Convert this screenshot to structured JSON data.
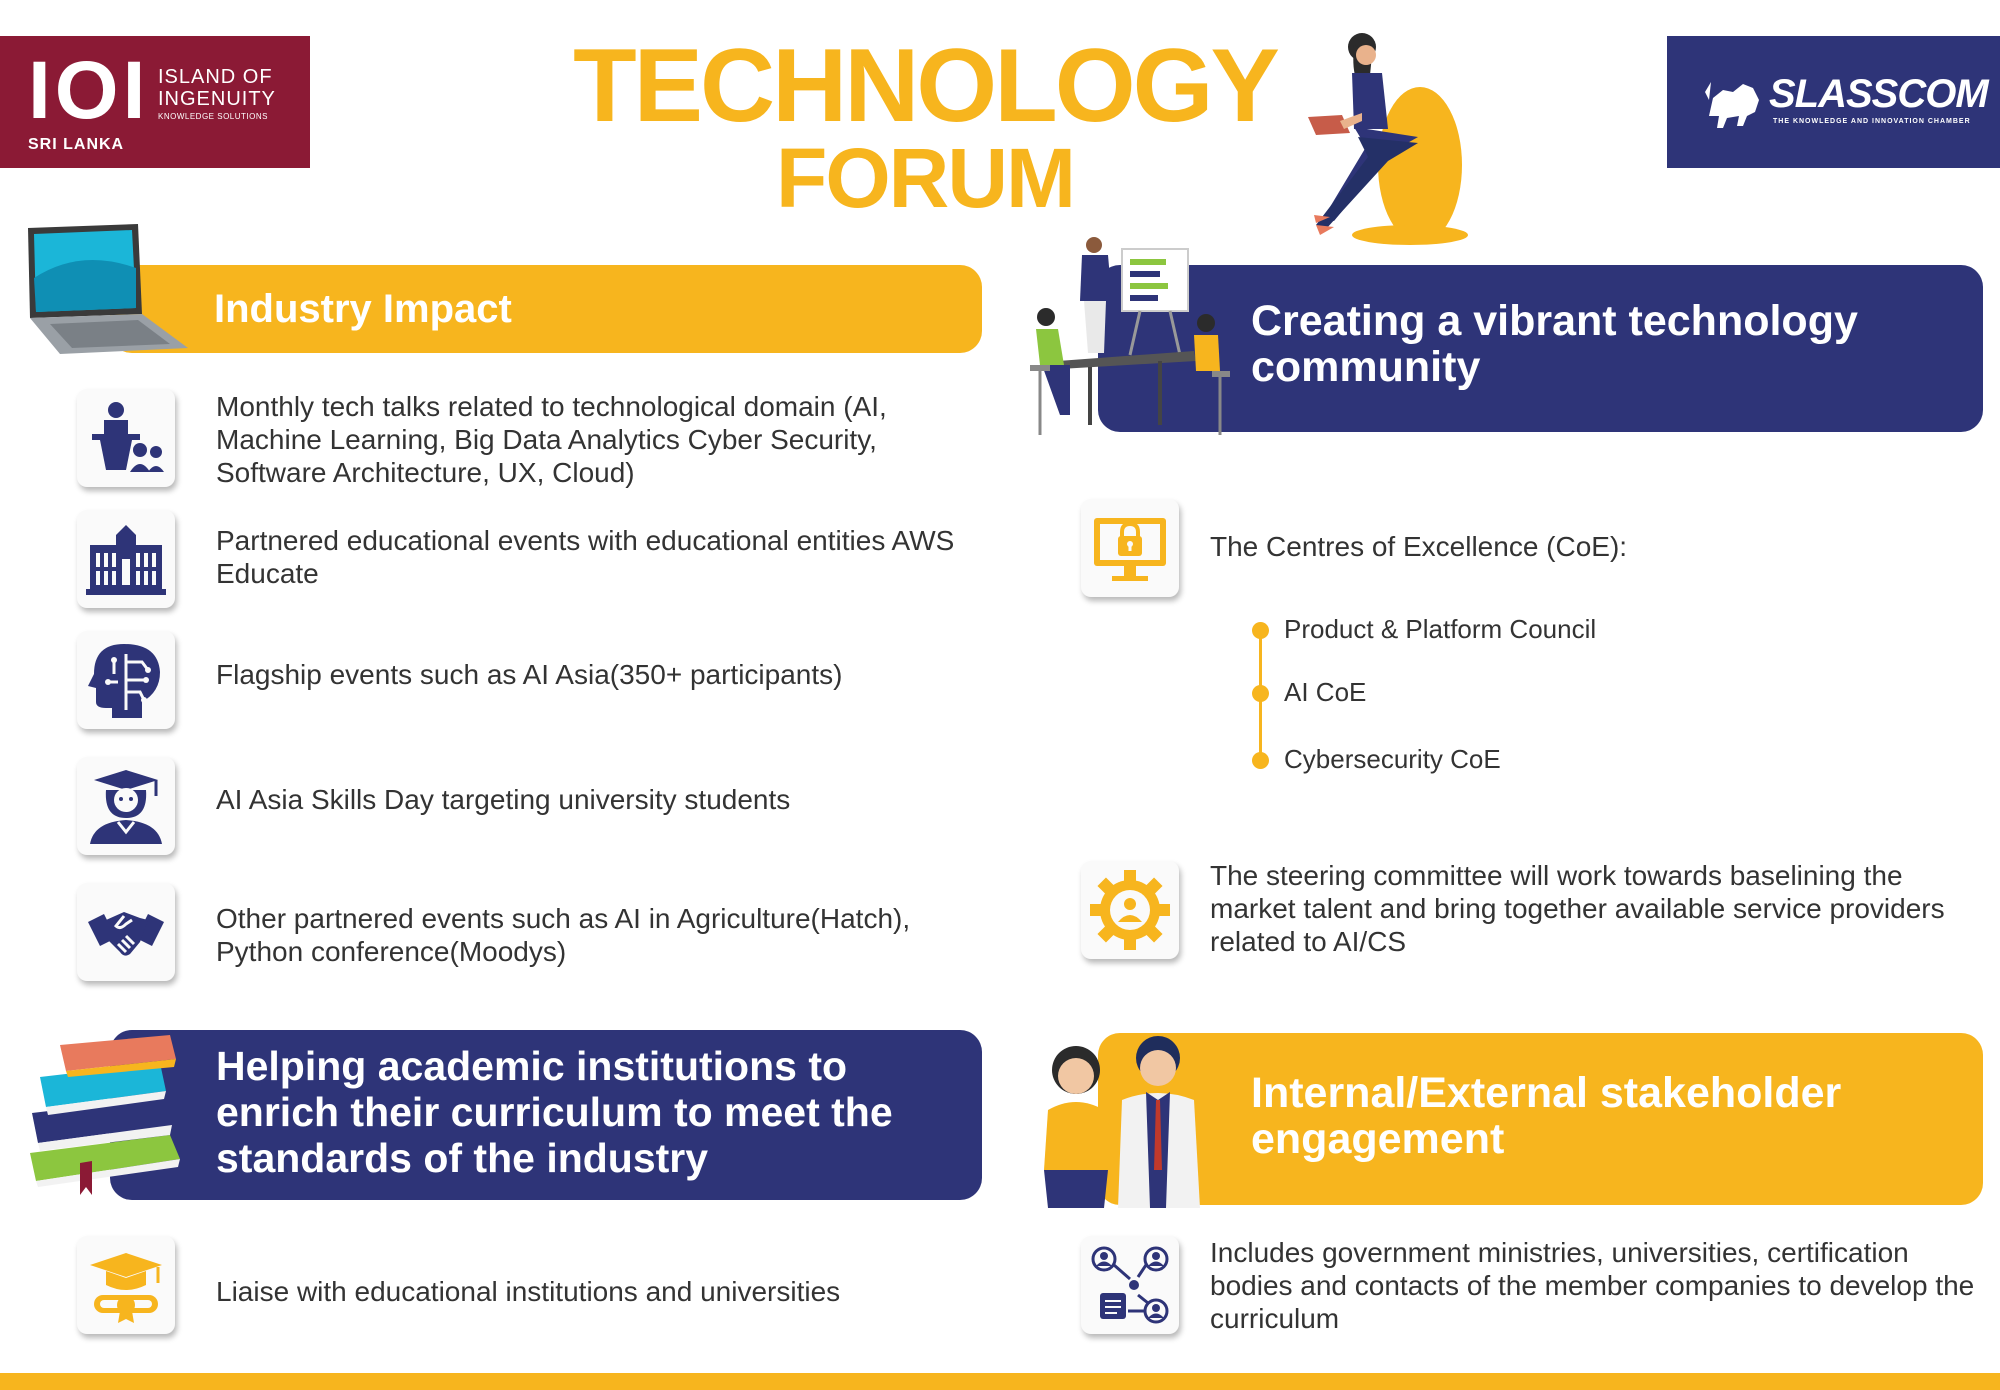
{
  "logos": {
    "left": {
      "mark": "IOI",
      "line1": "ISLAND OF",
      "line2": "INGENUITY",
      "line3": "KNOWLEDGE SOLUTIONS",
      "country": "SRI LANKA"
    },
    "right": {
      "name": "SLASSCOM",
      "tagline": "THE KNOWLEDGE AND INNOVATION CHAMBER"
    }
  },
  "title": {
    "line1": "TECHNOLOGY",
    "line2": "FORUM"
  },
  "colors": {
    "accent": "#f7b51e",
    "navy": "#2e3478",
    "maroon": "#8b1a35",
    "text": "#333333"
  },
  "industry_impact": {
    "heading": "Industry Impact",
    "items": [
      {
        "icon": "lecture-icon",
        "text": "Monthly tech talks related to technological domain (AI, Machine Learning, Big Data Analytics Cyber Security, Software Architecture, UX, Cloud)"
      },
      {
        "icon": "university-building-icon",
        "text": "Partnered educational events with educational entities AWS Educate"
      },
      {
        "icon": "ai-head-icon",
        "text": "Flagship events such as AI Asia(350+ participants)"
      },
      {
        "icon": "graduate-student-icon",
        "text": "AI Asia Skills Day targeting university students"
      },
      {
        "icon": "handshake-icon",
        "text": "Other partnered events such as AI in Agriculture(Hatch), Python conference(Moodys)"
      }
    ]
  },
  "vibrant_community": {
    "heading": "Creating a vibrant technology community",
    "coe": {
      "icon": "monitor-lock-icon",
      "label": "The Centres of Excellence (CoE):",
      "list": [
        "Product & Platform Council",
        "AI CoE",
        "Cybersecurity CoE"
      ]
    },
    "steering": {
      "icon": "gear-person-icon",
      "text": "The steering committee will work towards baselining the market talent and bring together available service providers related to AI/CS"
    }
  },
  "helping_academic": {
    "heading": "Helping academic institutions to enrich their curriculum to meet the standards  of the industry",
    "items": [
      {
        "icon": "graduation-cap-diploma-icon",
        "text": "Liaise with educational institutions and universities"
      }
    ]
  },
  "stakeholder": {
    "heading": "Internal/External stakeholder engagement",
    "items": [
      {
        "icon": "network-people-icon",
        "text": "Includes government ministries, universities, certification bodies and contacts of the member companies to develop the curriculum"
      }
    ]
  }
}
